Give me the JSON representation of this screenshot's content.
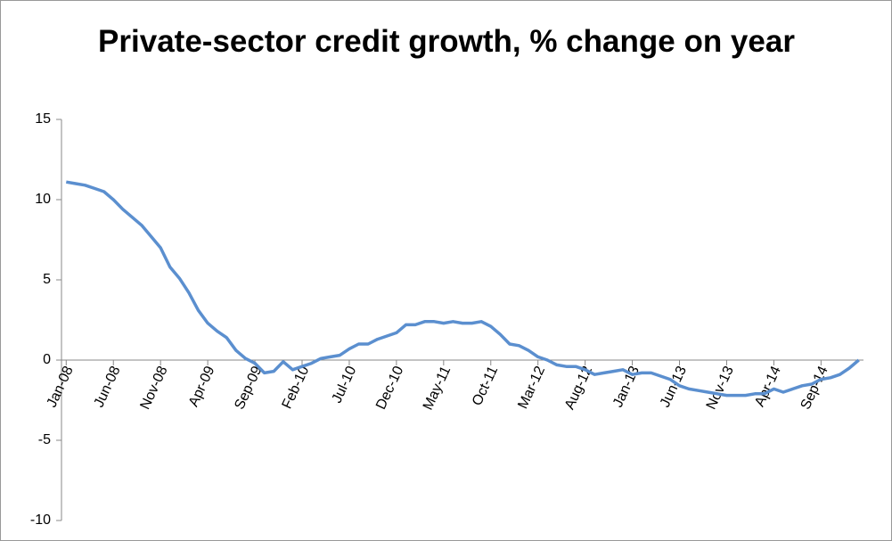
{
  "chart_data": {
    "type": "line",
    "title": "Private-sector credit growth, % change on year",
    "categories": [
      "Jan-08",
      null,
      null,
      null,
      null,
      "Jun-08",
      null,
      null,
      null,
      null,
      "Nov-08",
      null,
      null,
      null,
      null,
      "Apr-09",
      null,
      null,
      null,
      null,
      "Sep-09",
      null,
      null,
      null,
      null,
      "Feb-10",
      null,
      null,
      null,
      null,
      "Jul-10",
      null,
      null,
      null,
      null,
      "Dec-10",
      null,
      null,
      null,
      null,
      "May-11",
      null,
      null,
      null,
      null,
      "Oct-11",
      null,
      null,
      null,
      null,
      "Mar-12",
      null,
      null,
      null,
      null,
      "Aug-12",
      null,
      null,
      null,
      null,
      "Jan-13",
      null,
      null,
      null,
      null,
      "Jun-13",
      null,
      null,
      null,
      null,
      "Nov-13",
      null,
      null,
      null,
      null,
      "Apr-14",
      null,
      null,
      null,
      null,
      "Sep-14",
      null,
      null,
      null,
      null
    ],
    "series": [
      {
        "color": "#5b8fcf",
        "values": [
          11.1,
          11.0,
          10.9,
          10.7,
          10.5,
          10.0,
          9.4,
          8.9,
          8.4,
          7.7,
          7.0,
          5.8,
          5.1,
          4.2,
          3.1,
          2.3,
          1.8,
          1.4,
          0.6,
          0.1,
          -0.2,
          -0.8,
          -0.7,
          -0.1,
          -0.6,
          -0.4,
          -0.2,
          0.1,
          0.2,
          0.3,
          0.7,
          1.0,
          1.0,
          1.3,
          1.5,
          1.7,
          2.2,
          2.2,
          2.4,
          2.4,
          2.3,
          2.4,
          2.3,
          2.3,
          2.4,
          2.1,
          1.6,
          1.0,
          0.9,
          0.6,
          0.2,
          0.0,
          -0.3,
          -0.4,
          -0.4,
          -0.6,
          -0.9,
          -0.8,
          -0.7,
          -0.6,
          -0.9,
          -0.8,
          -0.8,
          -1.0,
          -1.2,
          -1.6,
          -1.8,
          -1.9,
          -2.0,
          -2.1,
          -2.2,
          -2.2,
          -2.2,
          -2.1,
          -2.1,
          -1.8,
          -2.0,
          -1.8,
          -1.6,
          -1.5,
          -1.2,
          -1.1,
          -0.9,
          -0.5,
          0.0
        ]
      }
    ],
    "ylim": [
      -10,
      15
    ],
    "yticks": [
      -10,
      -5,
      0,
      5,
      10,
      15
    ],
    "grid": false
  }
}
